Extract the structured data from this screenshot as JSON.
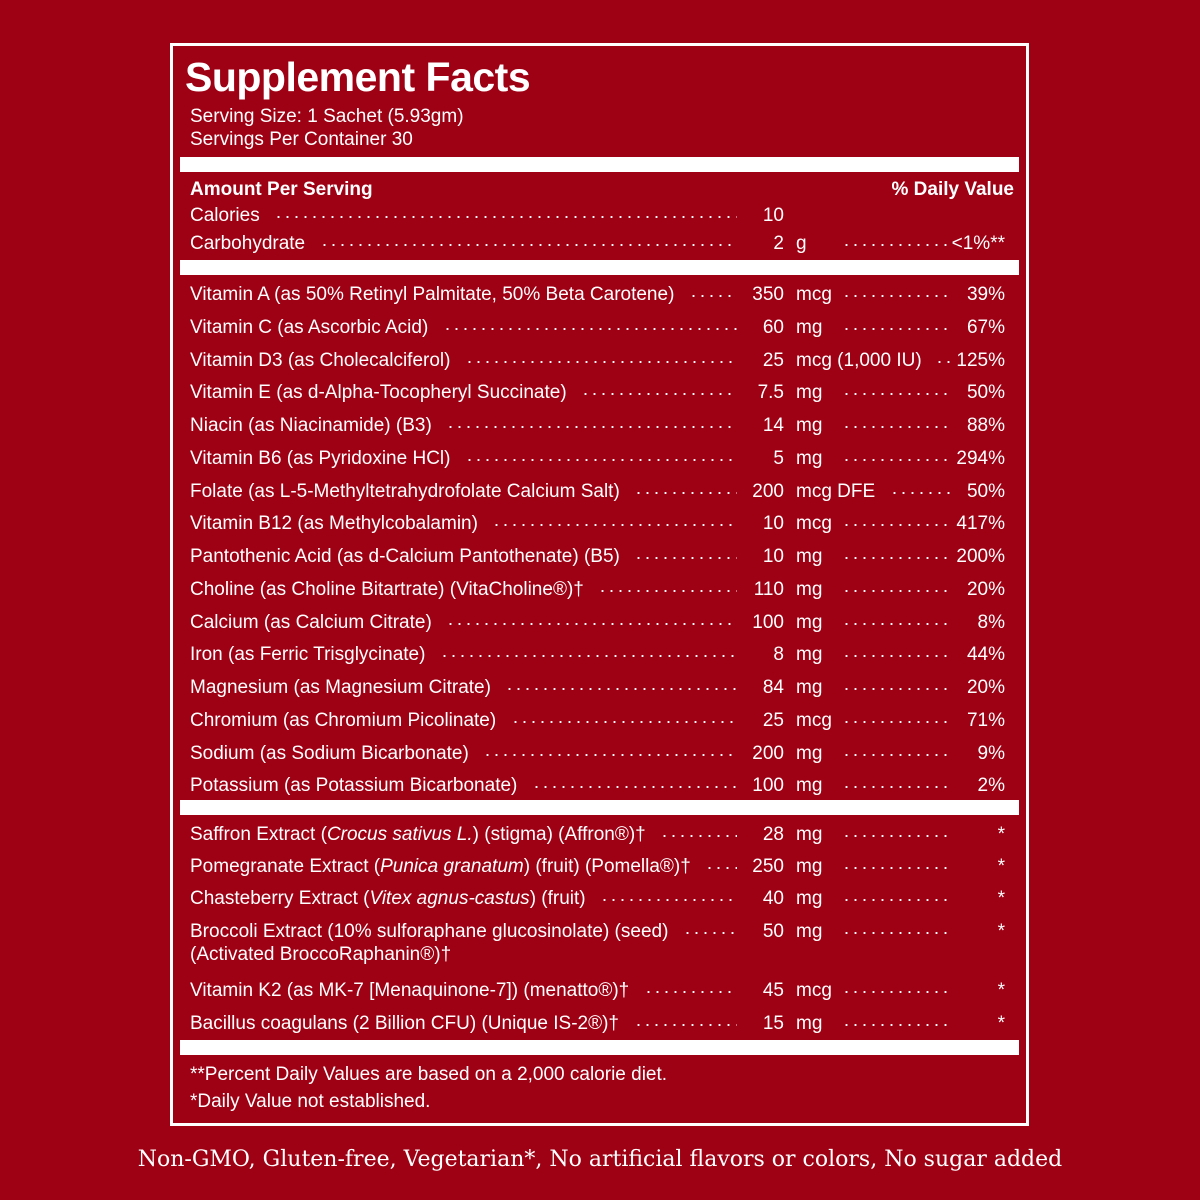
{
  "title": "Supplement Facts",
  "serving_size": "Serving Size: 1 Sachet (5.93gm)",
  "servings_per_container": "Servings Per Container 30",
  "header": {
    "amount_per_serving": "Amount Per Serving",
    "daily_value": "% Daily Value"
  },
  "top_rows": [
    {
      "label": "Calories",
      "amount": "10",
      "unit": "",
      "dv": ""
    },
    {
      "label": "Carbohydrate",
      "amount": "2",
      "unit": "g",
      "dv": "<1%**"
    }
  ],
  "vitamin_rows": [
    {
      "label": "Vitamin A (as 50% Retinyl Palmitate, 50% Beta Carotene)",
      "amount": "350",
      "unit": "mcg",
      "dv": "39%"
    },
    {
      "label": "Vitamin C (as Ascorbic Acid)",
      "amount": "60",
      "unit": "mg",
      "dv": "67%"
    },
    {
      "label": "Vitamin D3 (as Cholecalciferol)",
      "amount": "25",
      "unit": "mcg (1,000 IU)",
      "dv": "125%"
    },
    {
      "label": "Vitamin E (as d-Alpha-Tocopheryl Succinate)",
      "amount": "7.5",
      "unit": "mg",
      "dv": "50%"
    },
    {
      "label": "Niacin (as Niacinamide) (B3)",
      "amount": "14",
      "unit": "mg",
      "dv": "88%"
    },
    {
      "label": "Vitamin B6 (as Pyridoxine HCl)",
      "amount": "5",
      "unit": "mg",
      "dv": "294%"
    },
    {
      "label": "Folate (as L-5-Methyltetrahydrofolate Calcium Salt)",
      "amount": "200",
      "unit": "mcg DFE",
      "dv": "50%"
    },
    {
      "label": "Vitamin B12 (as Methylcobalamin)",
      "amount": "10",
      "unit": "mcg",
      "dv": "417%"
    },
    {
      "label": "Pantothenic Acid (as d-Calcium Pantothenate) (B5)",
      "amount": "10",
      "unit": "mg",
      "dv": "200%"
    },
    {
      "label": "Choline (as Choline Bitartrate) (VitaCholine®)†",
      "amount": "110",
      "unit": "mg",
      "dv": "20%"
    },
    {
      "label": "Calcium (as Calcium Citrate)",
      "amount": "100",
      "unit": "mg",
      "dv": "8%"
    },
    {
      "label": "Iron (as Ferric Trisglycinate)",
      "amount": "8",
      "unit": "mg",
      "dv": "44%"
    },
    {
      "label": "Magnesium (as Magnesium Citrate)",
      "amount": "84",
      "unit": "mg",
      "dv": "20%"
    },
    {
      "label": "Chromium (as Chromium Picolinate)",
      "amount": "25",
      "unit": "mcg",
      "dv": "71%"
    },
    {
      "label": "Sodium (as Sodium Bicarbonate)",
      "amount": "200",
      "unit": "mg",
      "dv": "9%"
    },
    {
      "label": "Potassium (as Potassium Bicarbonate)",
      "amount": "100",
      "unit": "mg",
      "dv": "2%"
    }
  ],
  "extract_rows": [
    {
      "label_pre": "Saffron Extract (",
      "label_italic": "Crocus sativus L.",
      "label_post": ") (stigma) (Affron®)†",
      "label_line2": "",
      "amount": "28",
      "unit": "mg",
      "dv": "*"
    },
    {
      "label_pre": "Pomegranate Extract (",
      "label_italic": "Punica granatum",
      "label_post": ") (fruit) (Pomella®)†",
      "label_line2": "",
      "amount": "250",
      "unit": "mg",
      "dv": "*"
    },
    {
      "label_pre": "Chasteberry Extract (",
      "label_italic": "Vitex agnus-castus",
      "label_post": ") (fruit)",
      "label_line2": "",
      "amount": "40",
      "unit": "mg",
      "dv": "*"
    },
    {
      "label_pre": "Broccoli Extract (10% sulforaphane glucosinolate) (seed)",
      "label_italic": "",
      "label_post": "",
      "label_line2": "(Activated BroccoRaphanin®)†",
      "amount": "50",
      "unit": "mg",
      "dv": "*"
    },
    {
      "label_pre": "Vitamin K2 (as MK-7 [Menaquinone-7]) (menatto®)†",
      "label_italic": "",
      "label_post": "",
      "label_line2": "",
      "amount": "45",
      "unit": "mcg",
      "dv": "*"
    },
    {
      "label_pre": "Bacillus coagulans (2 Billion CFU) (Unique IS-2®)†",
      "label_italic": "",
      "label_post": "",
      "label_line2": "",
      "amount": "15",
      "unit": "mg",
      "dv": "*"
    }
  ],
  "footnotes": [
    "**Percent Daily Values are based on a 2,000 calorie diet.",
    "*Daily Value not established."
  ],
  "bottom_note": "Non-GMO, Gluten-free, Vegetarian*, No artificial flavors or colors, No sugar added",
  "colors": {
    "background": "#9e0014",
    "foreground": "#ffffff"
  }
}
